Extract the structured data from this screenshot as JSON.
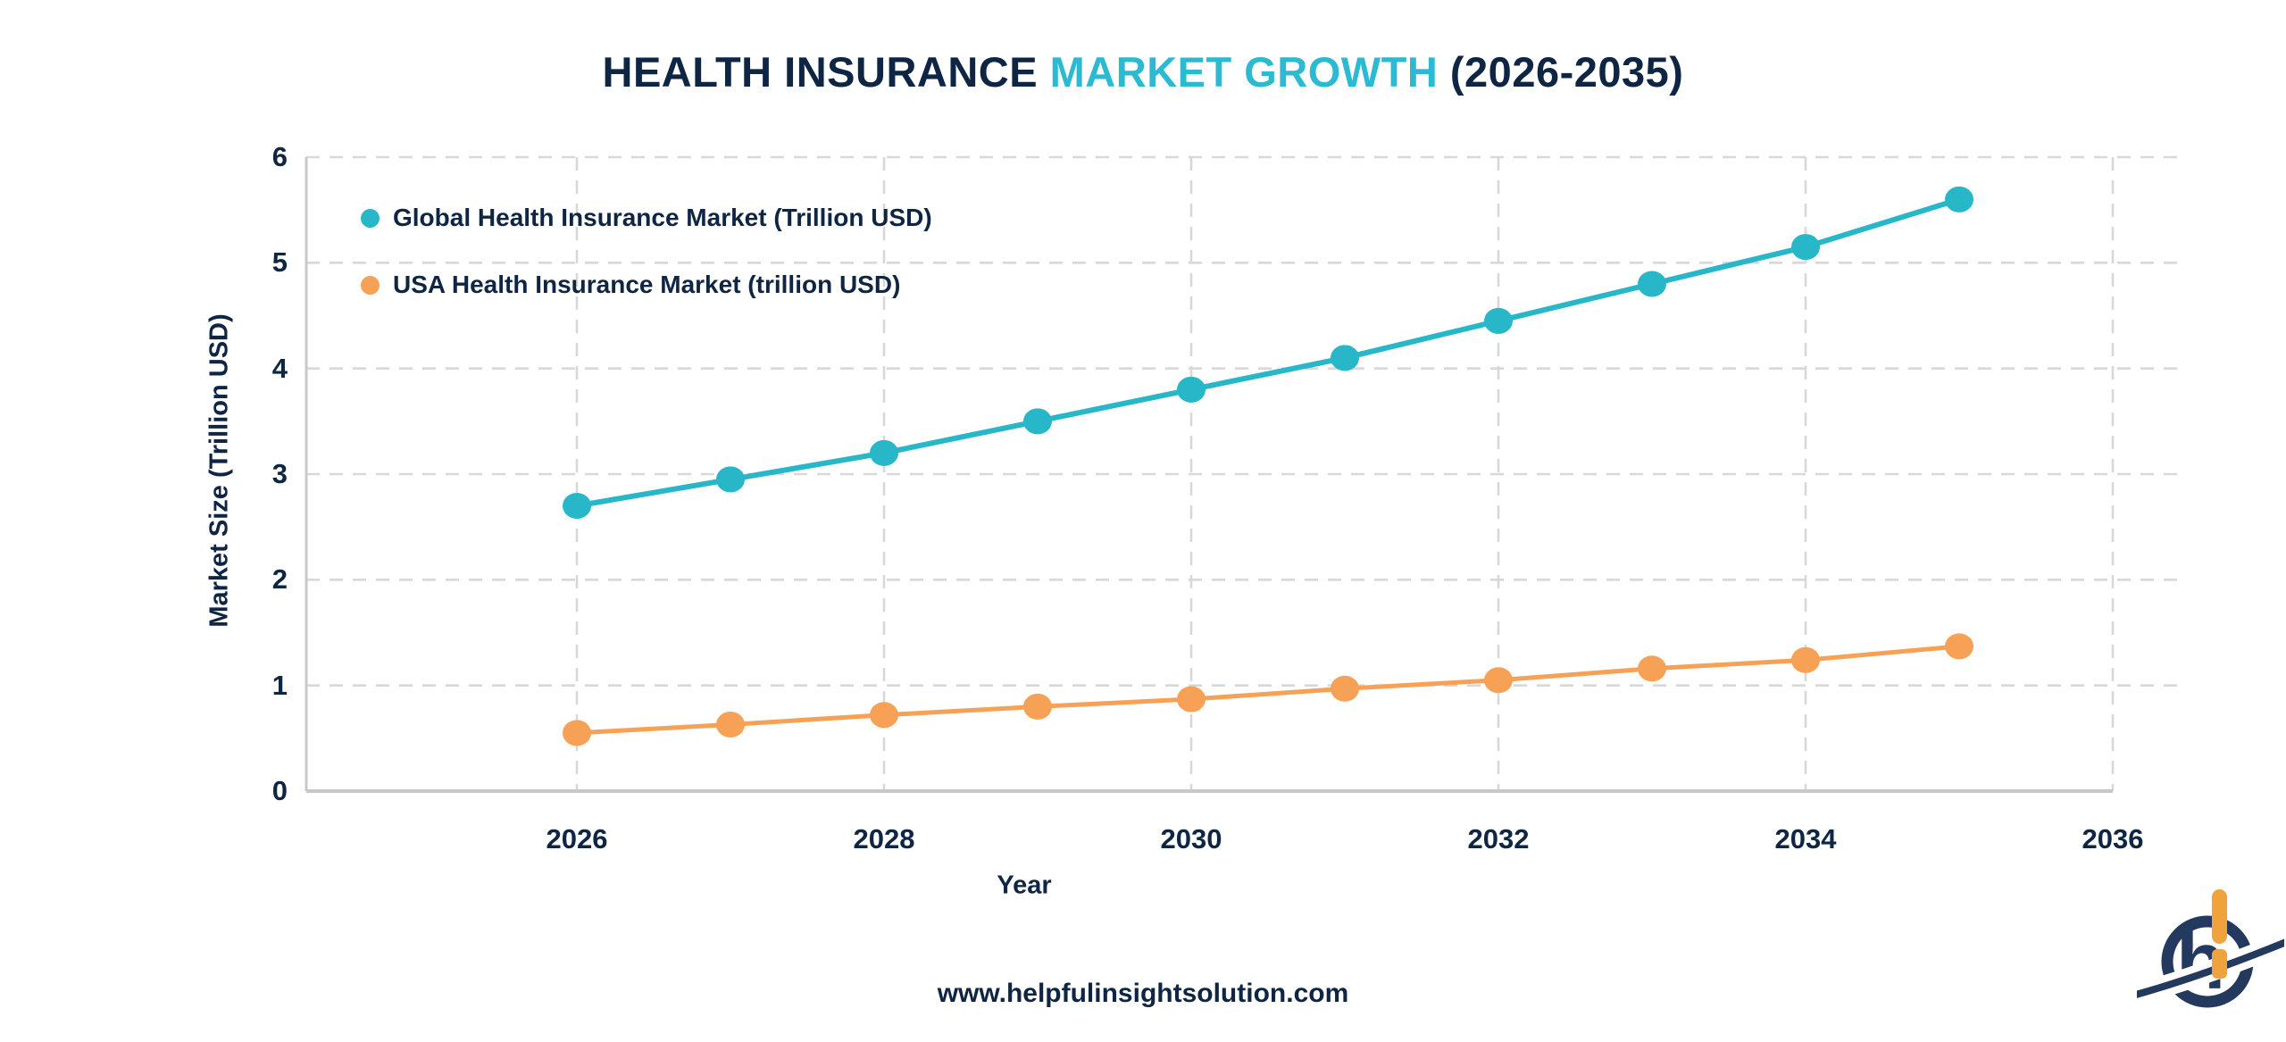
{
  "title": {
    "prefix": "HEALTH INSURANCE",
    "highlight": "MARKET GROWTH",
    "suffix": "(2026-2035)"
  },
  "legend": {
    "items": [
      {
        "label": "Global Health Insurance Market (Trillion USD)",
        "color": "#27b7c9"
      },
      {
        "label": "USA Health Insurance Market (trillion USD)",
        "color": "#f6a155"
      }
    ]
  },
  "axes": {
    "x_title": "Year",
    "y_title": "Market Size (Trillion USD)"
  },
  "footer": {
    "website": "www.helpfulinsightsolution.com"
  },
  "logo": {
    "monogram": "h"
  },
  "colors": {
    "navy": "#0e2543",
    "teal": "#27b7c9",
    "orange": "#f6a155",
    "title_accent": "#2cbad3",
    "grid": "#d8d8d8",
    "axis": "#c8c8c8",
    "logo_navy": "#24395e",
    "logo_orange": "#f0a33c"
  },
  "chart_data": {
    "type": "line",
    "x": [
      2026,
      2027,
      2028,
      2029,
      2030,
      2031,
      2032,
      2033,
      2034,
      2035
    ],
    "series": [
      {
        "name": "Global Health Insurance Market (Trillion USD)",
        "color": "#27b7c9",
        "values": [
          2.7,
          2.95,
          3.2,
          3.5,
          3.8,
          4.1,
          4.45,
          4.8,
          5.15,
          5.6
        ]
      },
      {
        "name": "USA Health Insurance Market (trillion USD)",
        "color": "#f6a155",
        "values": [
          0.55,
          0.63,
          0.72,
          0.8,
          0.87,
          0.97,
          1.05,
          1.16,
          1.24,
          1.37
        ]
      }
    ],
    "title": "HEALTH INSURANCE MARKET GROWTH (2026-2035)",
    "xlabel": "Year",
    "ylabel": "Market Size (Trillion USD)",
    "x_ticks": [
      2026,
      2028,
      2030,
      2032,
      2034,
      2036
    ],
    "y_ticks": [
      0,
      1,
      2,
      3,
      4,
      5,
      6
    ],
    "xlim": [
      2024.25,
      2036.45
    ],
    "ylim": [
      0,
      6
    ],
    "grid": true,
    "legend_position": "top-left"
  }
}
